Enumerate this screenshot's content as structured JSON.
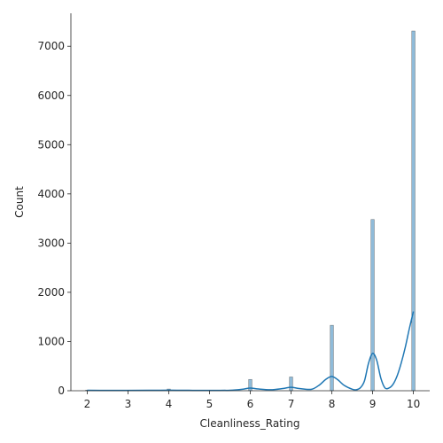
{
  "chart_data": {
    "type": "histogram",
    "xlabel": "Cleanliness_Rating",
    "ylabel": "Count",
    "xlim": [
      1.6,
      10.4
    ],
    "ylim": [
      0,
      7670
    ],
    "x_ticks": [
      2,
      3,
      4,
      5,
      6,
      7,
      8,
      9,
      10
    ],
    "y_ticks": [
      0,
      1000,
      2000,
      3000,
      4000,
      5000,
      6000,
      7000
    ],
    "bin_width": 0.08,
    "bars": [
      {
        "x": 2,
        "count": 12
      },
      {
        "x": 4,
        "count": 35
      },
      {
        "x": 5,
        "count": 8
      },
      {
        "x": 6,
        "count": 230
      },
      {
        "x": 7,
        "count": 280
      },
      {
        "x": 8,
        "count": 1330
      },
      {
        "x": 9,
        "count": 3480
      },
      {
        "x": 10,
        "count": 7310
      }
    ],
    "kde": {
      "x": [
        2.0,
        2.5,
        3.0,
        3.5,
        4.0,
        4.5,
        5.0,
        5.5,
        5.8,
        6.0,
        6.2,
        6.5,
        6.8,
        7.0,
        7.2,
        7.5,
        7.7,
        7.85,
        8.0,
        8.15,
        8.3,
        8.5,
        8.6,
        8.7,
        8.8,
        8.9,
        9.0,
        9.1,
        9.2,
        9.3,
        9.4,
        9.5,
        9.6,
        9.7,
        9.8,
        9.9,
        10.0
      ],
      "y": [
        8,
        6,
        6,
        8,
        12,
        8,
        6,
        10,
        30,
        55,
        35,
        20,
        45,
        70,
        45,
        30,
        120,
        230,
        290,
        220,
        110,
        30,
        20,
        60,
        200,
        560,
        760,
        620,
        260,
        60,
        55,
        130,
        300,
        560,
        880,
        1260,
        1610
      ]
    },
    "bar_color": "#1f77b4",
    "line_color": "#1f77b4"
  }
}
